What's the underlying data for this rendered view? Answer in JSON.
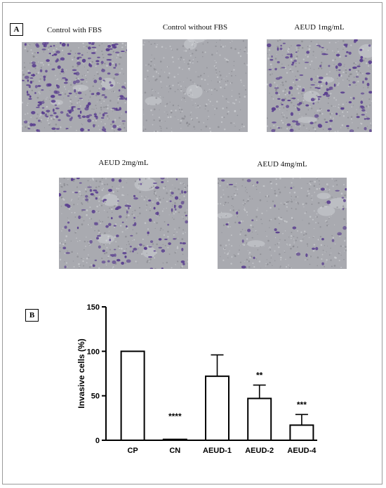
{
  "panel_a": {
    "label": "A",
    "images": [
      {
        "caption": "Control with FBS",
        "stained_cell_density": 0.9
      },
      {
        "caption": "Control without FBS",
        "stained_cell_density": 0.0
      },
      {
        "caption": "AEUD 1mg/mL",
        "stained_cell_density": 0.6
      },
      {
        "caption": "AEUD 2mg/mL",
        "stained_cell_density": 0.45
      },
      {
        "caption": "AEUD 4mg/mL",
        "stained_cell_density": 0.12
      }
    ]
  },
  "panel_b": {
    "label": "B"
  },
  "chart_data": {
    "type": "bar",
    "ylabel": "Invasive cells (%)",
    "ylim": [
      0,
      150
    ],
    "yticks": [
      0,
      50,
      100,
      150
    ],
    "categories": [
      "CP",
      "CN",
      "AEUD-1",
      "AEUD-2",
      "AEUD-4"
    ],
    "values": [
      100,
      1,
      72,
      47,
      17
    ],
    "errors": [
      0,
      0.5,
      24,
      15,
      12
    ],
    "significance": [
      "",
      "****",
      "",
      "**",
      "***"
    ]
  },
  "colors": {
    "stain": "#5a3f8f",
    "background": "#a9aab0",
    "bar_fill": "#ffffff",
    "axis": "#000000"
  }
}
